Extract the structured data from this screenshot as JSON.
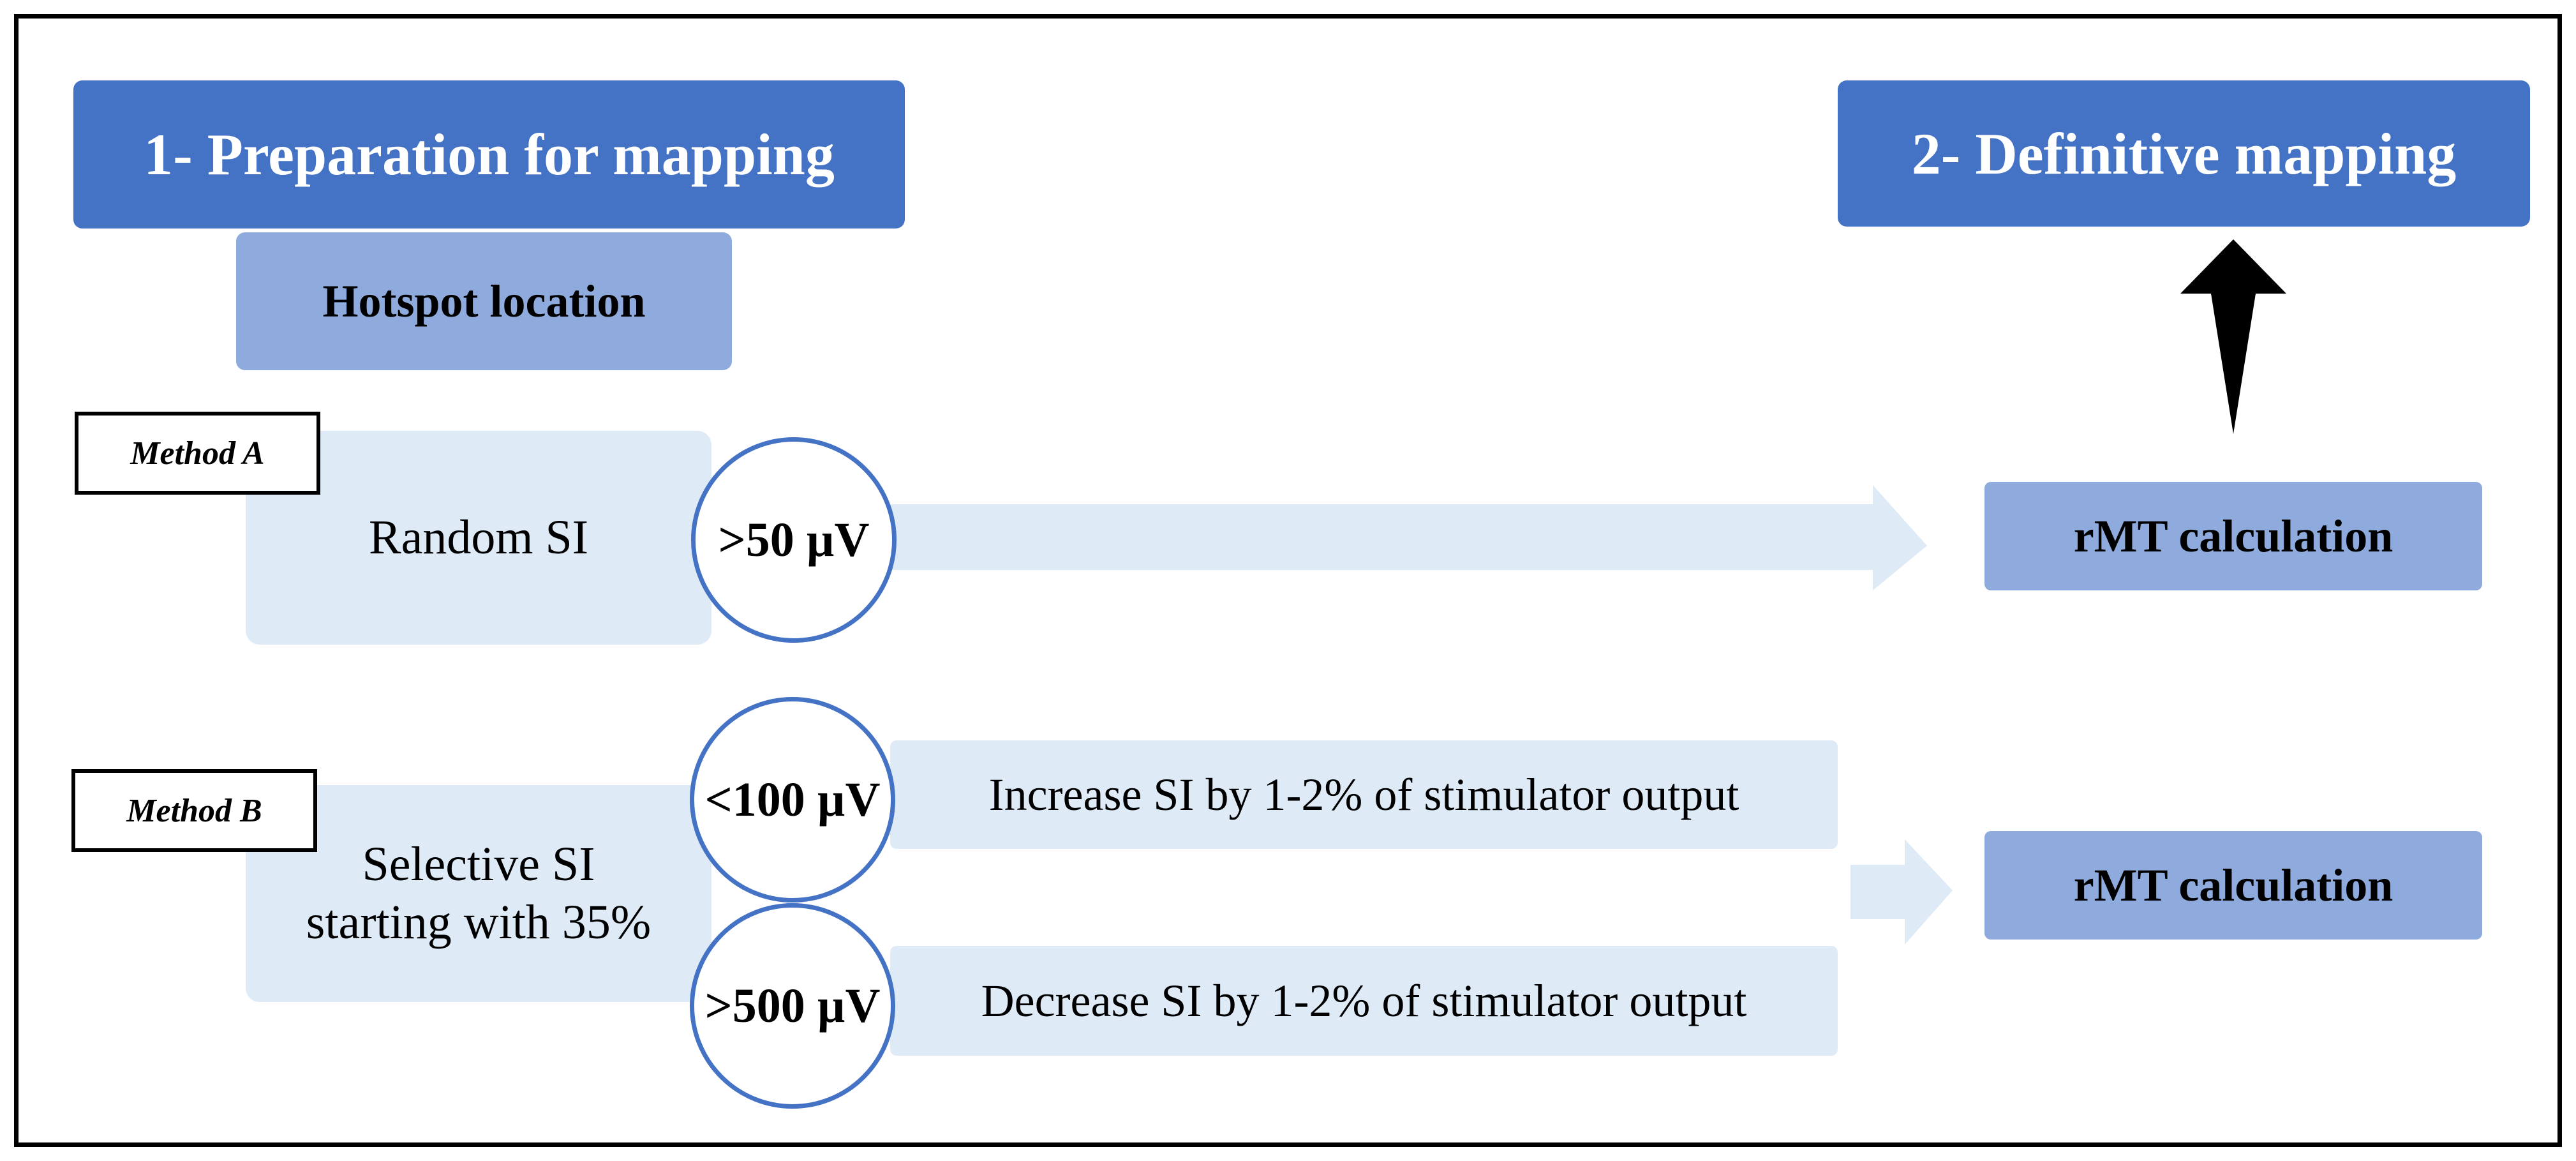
{
  "headers": {
    "step1": "1- Preparation for mapping",
    "step2": "2- Definitive mapping",
    "hotspot": "Hotspot location"
  },
  "method_a": {
    "label": "Method A",
    "box_text": "Random SI",
    "threshold": ">50 µV",
    "result": "rMT calculation"
  },
  "method_b": {
    "label": "Method B",
    "box_line1": "Selective SI",
    "box_line2": "starting with 35%",
    "low_threshold": "<100 µV",
    "low_action": "Increase SI by 1-2% of stimulator output",
    "high_threshold": ">500 µV",
    "high_action": "Decrease SI by 1-2% of stimulator output",
    "result": "rMT calculation"
  },
  "colors": {
    "header_blue": "#4472C4",
    "mid_blue": "#8FAADC",
    "light_blue": "#DEEBF7",
    "arrow_black": "#000000"
  }
}
